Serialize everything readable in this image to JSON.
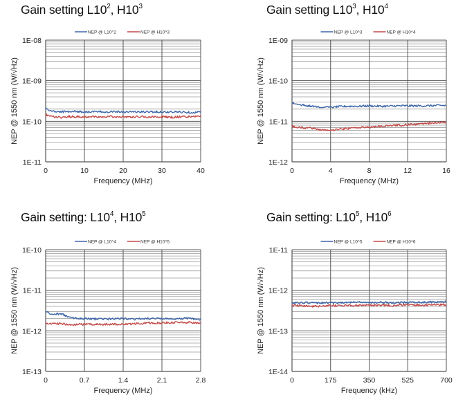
{
  "chart_data": [
    {
      "type": "line",
      "title": "Gain setting L10², H10³",
      "title_parts": {
        "prefix": "Gain setting L10",
        "low_exp": "2",
        "mid": ", H10",
        "high_exp": "3"
      },
      "xlabel": "Frequency (MHz)",
      "ylabel": "NEP @ 1550 nm (W/√Hz)",
      "xlim": [
        0,
        40
      ],
      "xticks": [
        "0",
        "10",
        "20",
        "30",
        "40"
      ],
      "ylim": [
        1e-11,
        1e-08
      ],
      "yscale": "log",
      "yticks": [
        "1E-08",
        "1E-09",
        "1E-10",
        "1E-11"
      ],
      "grid": true,
      "legend_position": "top",
      "x": [
        0,
        0.5,
        2,
        4,
        6,
        8,
        10,
        12,
        14,
        16,
        18,
        20,
        22,
        24,
        26,
        28,
        30,
        32,
        34,
        36,
        38,
        40
      ],
      "series": [
        {
          "name": "NEP @ L10^2",
          "color": "#3F67A8",
          "values": [
            2.2e-10,
            1.9e-10,
            1.75e-10,
            1.7e-10,
            1.75e-10,
            1.75e-10,
            1.7e-10,
            1.72e-10,
            1.7e-10,
            1.72e-10,
            1.75e-10,
            1.7e-10,
            1.72e-10,
            1.7e-10,
            1.7e-10,
            1.72e-10,
            1.7e-10,
            1.68e-10,
            1.7e-10,
            1.68e-10,
            1.65e-10,
            1.68e-10
          ]
        },
        {
          "name": "NEP @ H10^3",
          "color": "#C24A48",
          "values": [
            1.5e-10,
            1.4e-10,
            1.3e-10,
            1.25e-10,
            1.3e-10,
            1.3e-10,
            1.28e-10,
            1.3e-10,
            1.28e-10,
            1.3e-10,
            1.28e-10,
            1.3e-10,
            1.28e-10,
            1.3e-10,
            1.28e-10,
            1.28e-10,
            1.3e-10,
            1.25e-10,
            1.28e-10,
            1.3e-10,
            1.3e-10,
            1.35e-10
          ]
        }
      ]
    },
    {
      "type": "line",
      "title": "Gain setting L10³, H10⁴",
      "title_parts": {
        "prefix": "Gain setting L10",
        "low_exp": "3",
        "mid": ", H10",
        "high_exp": "4"
      },
      "xlabel": "Frequency (MHz)",
      "ylabel": "NEP @ 1550 nm (W/√Hz)",
      "xlim": [
        0,
        16
      ],
      "xticks": [
        "0",
        "4",
        "8",
        "12",
        "16"
      ],
      "ylim": [
        1e-12,
        1e-09
      ],
      "yscale": "log",
      "yticks": [
        "1E-09",
        "1E-10",
        "1E-11",
        "1E-12"
      ],
      "grid": true,
      "legend_position": "top",
      "x": [
        0,
        0.5,
        1,
        2,
        3,
        4,
        5,
        6,
        7,
        8,
        9,
        10,
        11,
        12,
        13,
        14,
        15,
        16
      ],
      "series": [
        {
          "name": "NEP @ L10^3",
          "color": "#3F67A8",
          "values": [
            2.8e-11,
            2.7e-11,
            2.5e-11,
            2.4e-11,
            2.25e-11,
            2.2e-11,
            2.3e-11,
            2.35e-11,
            2.35e-11,
            2.4e-11,
            2.35e-11,
            2.35e-11,
            2.4e-11,
            2.4e-11,
            2.4e-11,
            2.4e-11,
            2.45e-11,
            2.45e-11
          ]
        },
        {
          "name": "NEP @ H10^4",
          "color": "#C24A48",
          "values": [
            7.5e-12,
            7e-12,
            7e-12,
            6.8e-12,
            6.2e-12,
            6e-12,
            6.4e-12,
            6.7e-12,
            7e-12,
            7.2e-12,
            7.5e-12,
            7.7e-12,
            8e-12,
            8.2e-12,
            8.5e-12,
            8.8e-12,
            9.2e-12,
            9.5e-12
          ]
        }
      ]
    },
    {
      "type": "line",
      "title": "Gain setting: L10⁴, H10⁵",
      "title_parts": {
        "prefix": "Gain setting: L10",
        "low_exp": "4",
        "mid": ", H10",
        "high_exp": "5"
      },
      "xlabel": "Frequency (MHz)",
      "ylabel": "NEP @ 1550 nm (W/√Hz)",
      "xlim": [
        0,
        2.8
      ],
      "xticks": [
        "0",
        "0.7",
        "1.4",
        "2.1",
        "2.8"
      ],
      "ylim": [
        1e-13,
        1e-10
      ],
      "yscale": "log",
      "yticks": [
        "1E-10",
        "1E-11",
        "1E-12",
        "1E-13"
      ],
      "grid": true,
      "legend_position": "top",
      "x": [
        0,
        0.05,
        0.1,
        0.2,
        0.3,
        0.4,
        0.5,
        0.7,
        0.9,
        1.1,
        1.4,
        1.6,
        1.8,
        2.0,
        2.2,
        2.4,
        2.6,
        2.7,
        2.8
      ],
      "series": [
        {
          "name": "NEP @ L10^4",
          "color": "#3F67A8",
          "values": [
            3e-12,
            2.8e-12,
            2.5e-12,
            2.6e-12,
            2.6e-12,
            2.2e-12,
            2.05e-12,
            2e-12,
            1.95e-12,
            1.95e-12,
            2e-12,
            1.95e-12,
            2e-12,
            2e-12,
            2e-12,
            2e-12,
            2.05e-12,
            1.95e-12,
            1.9e-12
          ]
        },
        {
          "name": "NEP @ H10^5",
          "color": "#C24A48",
          "values": [
            1.55e-12,
            1.55e-12,
            1.5e-12,
            1.5e-12,
            1.5e-12,
            1.45e-12,
            1.45e-12,
            1.45e-12,
            1.45e-12,
            1.45e-12,
            1.45e-12,
            1.5e-12,
            1.55e-12,
            1.55e-12,
            1.6e-12,
            1.6e-12,
            1.62e-12,
            1.6e-12,
            1.55e-12
          ]
        }
      ]
    },
    {
      "type": "line",
      "title": "Gain setting: L10⁵, H10⁶",
      "title_parts": {
        "prefix": "Gain setting: L10",
        "low_exp": "5",
        "mid": ", H10",
        "high_exp": "6"
      },
      "xlabel": "Frequency (kHz)",
      "ylabel": "NEP @ 1550 nm (W/√Hz)",
      "xlim": [
        0,
        700
      ],
      "xticks": [
        "0",
        "175",
        "350",
        "525",
        "700"
      ],
      "ylim": [
        1e-14,
        1e-11
      ],
      "yscale": "log",
      "yticks": [
        "1E-11",
        "1E-12",
        "1E-13",
        "1E-14"
      ],
      "grid": true,
      "legend_position": "top",
      "x": [
        0,
        35,
        70,
        105,
        140,
        175,
        210,
        245,
        280,
        315,
        350,
        385,
        420,
        455,
        490,
        525,
        560,
        595,
        630,
        665,
        700
      ],
      "series": [
        {
          "name": "NEP @ L10^5",
          "color": "#3F67A8",
          "values": [
            4.8e-13,
            4.9e-13,
            4.9e-13,
            4.8e-13,
            4.9e-13,
            4.9e-13,
            4.9e-13,
            5e-13,
            5e-13,
            5.1e-13,
            5e-13,
            5e-13,
            5e-13,
            4.9e-13,
            5e-13,
            5e-13,
            5e-13,
            5.1e-13,
            5.1e-13,
            5.1e-13,
            5.2e-13
          ]
        },
        {
          "name": "NEP @ H10^6",
          "color": "#C24A48",
          "values": [
            4.2e-13,
            4.2e-13,
            4.1e-13,
            4e-13,
            4.1e-13,
            4.2e-13,
            4.2e-13,
            4.2e-13,
            4.2e-13,
            4.3e-13,
            4.2e-13,
            4.3e-13,
            4.3e-13,
            4.2e-13,
            4.3e-13,
            4.3e-13,
            4.3e-13,
            4.3e-13,
            4.4e-13,
            4.4e-13,
            4.4e-13
          ]
        }
      ]
    }
  ]
}
